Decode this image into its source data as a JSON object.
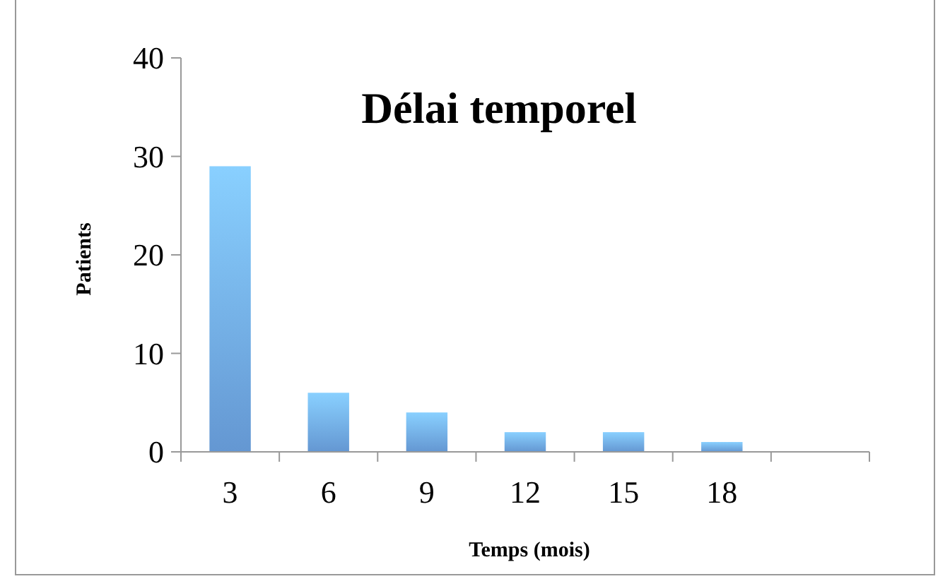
{
  "chart_data": {
    "type": "bar",
    "title": "Délai temporel",
    "xlabel": "Temps (mois)",
    "ylabel": "Patients",
    "categories": [
      "3",
      "6",
      "9",
      "12",
      "15",
      "18",
      null
    ],
    "values": [
      29,
      6,
      4,
      2,
      2,
      1,
      null
    ],
    "color": "#6fa8ea",
    "ylim": [
      0,
      40
    ],
    "yticks": [
      0,
      10,
      20,
      30,
      40
    ],
    "grid": false
  }
}
